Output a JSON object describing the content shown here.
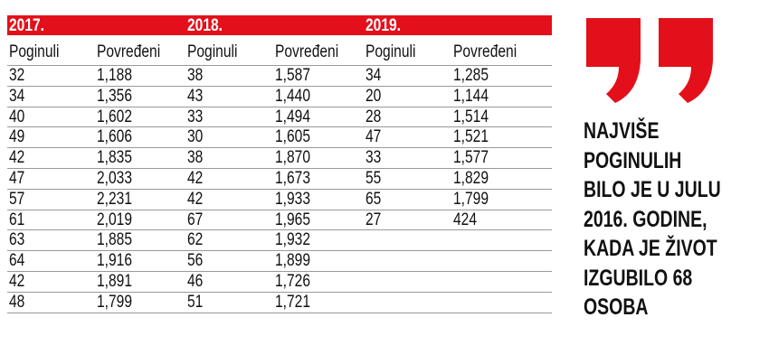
{
  "table": {
    "years": [
      {
        "year": "2017.",
        "columns": [
          "Poginuli",
          "Povređeni"
        ],
        "rows": [
          [
            "32",
            "1,188"
          ],
          [
            "34",
            "1,356"
          ],
          [
            "40",
            "1,602"
          ],
          [
            "49",
            "1,606"
          ],
          [
            "42",
            "1,835"
          ],
          [
            "47",
            "2,033"
          ],
          [
            "57",
            "2,231"
          ],
          [
            "61",
            "2,019"
          ],
          [
            "63",
            "1,885"
          ],
          [
            "64",
            "1,916"
          ],
          [
            "42",
            "1,891"
          ],
          [
            "48",
            "1,799"
          ]
        ]
      },
      {
        "year": "2018.",
        "columns": [
          "Poginuli",
          "Povređeni"
        ],
        "rows": [
          [
            "38",
            "1,587"
          ],
          [
            "43",
            "1,440"
          ],
          [
            "33",
            "1,494"
          ],
          [
            "30",
            "1,605"
          ],
          [
            "38",
            "1,870"
          ],
          [
            "42",
            "1,673"
          ],
          [
            "42",
            "1,933"
          ],
          [
            "67",
            "1,965"
          ],
          [
            "62",
            "1,932"
          ],
          [
            "56",
            "1,899"
          ],
          [
            "46",
            "1,726"
          ],
          [
            "51",
            "1,721"
          ]
        ]
      },
      {
        "year": "2019.",
        "columns": [
          "Poginuli",
          "Povređeni"
        ],
        "rows": [
          [
            "34",
            "1,285"
          ],
          [
            "20",
            "1,144"
          ],
          [
            "28",
            "1,514"
          ],
          [
            "47",
            "1,521"
          ],
          [
            "33",
            "1,577"
          ],
          [
            "55",
            "1,829"
          ],
          [
            "65",
            "1,799"
          ],
          [
            "27",
            "424"
          ]
        ]
      }
    ]
  },
  "quote": {
    "lines": [
      "NAJVIŠE",
      "POGINULIH",
      "BILO JE U JULU",
      "2016. GODINE,",
      "KADA JE ŽIVOT",
      "IZGUBILO 68",
      "OSOBA"
    ]
  }
}
